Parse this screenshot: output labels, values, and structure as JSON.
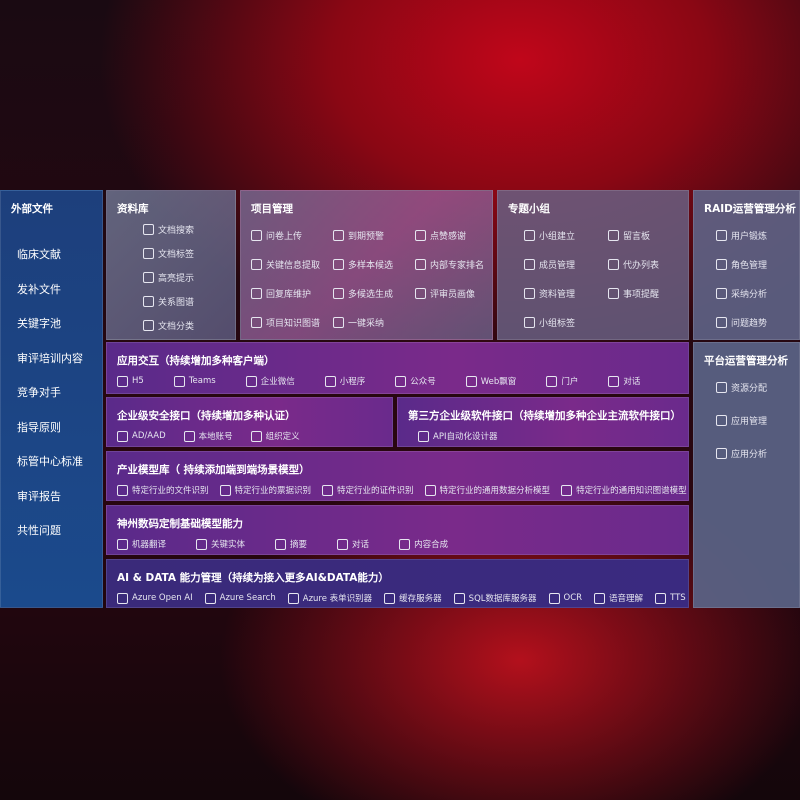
{
  "left": {
    "title": "外部文件",
    "items": [
      "临床文献",
      "发补文件",
      "关键字池",
      "审评培训内容",
      "竞争对手",
      "指导原则",
      "标管中心标准",
      "审评报告",
      "共性问题"
    ]
  },
  "library": {
    "title": "资料库",
    "items": [
      {
        "label": "文档搜索",
        "icon": "doc-search-icon"
      },
      {
        "label": "文档标签",
        "icon": "tag-icon"
      },
      {
        "label": "高亮提示",
        "icon": "pen-icon"
      },
      {
        "label": "关系图谱",
        "icon": "graph-icon"
      },
      {
        "label": "文档分类",
        "icon": "doc-copy-icon"
      }
    ]
  },
  "project": {
    "title": "项目管理",
    "items": [
      {
        "label": "问卷上传",
        "icon": "cloud-upload-icon"
      },
      {
        "label": "到期预警",
        "icon": "alarm-icon"
      },
      {
        "label": "点赞感谢",
        "icon": "thumbs-up-icon"
      },
      {
        "label": "关键信息提取",
        "icon": "window-icon"
      },
      {
        "label": "多样本候选",
        "icon": "reply-icon"
      },
      {
        "label": "内部专家排名",
        "icon": "ranking-icon"
      },
      {
        "label": "回复库维护",
        "icon": "edit-icon"
      },
      {
        "label": "多候选生成",
        "icon": "puzzle-icon"
      },
      {
        "label": "评审员画像",
        "icon": "user-icon"
      },
      {
        "label": "项目知识图谱",
        "icon": "graph-icon"
      },
      {
        "label": "一键采纳",
        "icon": "reply-icon"
      }
    ]
  },
  "group": {
    "title": "专题小组",
    "items": [
      {
        "label": "小组建立",
        "icon": "users-icon"
      },
      {
        "label": "留言板",
        "icon": "bbs-icon"
      },
      {
        "label": "成员管理",
        "icon": "user-add-icon"
      },
      {
        "label": "代办列表",
        "icon": "clipboard-icon"
      },
      {
        "label": "资料管理",
        "icon": "folder-icon"
      },
      {
        "label": "事项提醒",
        "icon": "bell-icon"
      },
      {
        "label": "小组标签",
        "icon": "tag-icon"
      }
    ]
  },
  "raid": {
    "title": "RAID运营管理分析",
    "items": [
      {
        "label": "用户锻炼",
        "icon": "id-card-icon"
      },
      {
        "label": "角色管理",
        "icon": "users-icon"
      },
      {
        "label": "采纳分析",
        "icon": "qa-icon"
      },
      {
        "label": "问题趋势",
        "icon": "trend-icon"
      }
    ]
  },
  "platform": {
    "title": "平台运营管理分析",
    "items": [
      {
        "label": "资源分配",
        "icon": "checklist-icon"
      },
      {
        "label": "应用管理",
        "icon": "apps-icon"
      },
      {
        "label": "应用分析",
        "icon": "analysis-icon"
      }
    ]
  },
  "app": {
    "title": "应用交互（持续增加多种客户端）",
    "items": [
      {
        "label": "H5",
        "icon": "html5-icon"
      },
      {
        "label": "Teams",
        "icon": "teams-icon"
      },
      {
        "label": "企业微信",
        "icon": "wecom-icon"
      },
      {
        "label": "小程序",
        "icon": "miniprogram-icon"
      },
      {
        "label": "公众号",
        "icon": "users-icon"
      },
      {
        "label": "Web飘窗",
        "icon": "window-icon"
      },
      {
        "label": "门户",
        "icon": "portal-icon"
      },
      {
        "label": "对话",
        "icon": "chat-users-icon"
      }
    ]
  },
  "security": {
    "title": "企业级安全接口（持续增加多种认证）",
    "items": [
      {
        "label": "AD/AAD",
        "icon": "ad-icon"
      },
      {
        "label": "本地账号",
        "icon": "user-icon"
      },
      {
        "label": "组织定义",
        "icon": "org-icon"
      }
    ]
  },
  "third": {
    "title": "第三方企业级软件接口（持续增加多种企业主流软件接口）",
    "items": [
      {
        "label": "API自动化设计器",
        "icon": "gear-icon"
      }
    ]
  },
  "industry": {
    "title": "产业模型库（ 持续添加端到端场景模型）",
    "items": [
      {
        "label": "特定行业的文件识别",
        "icon": "file-icon"
      },
      {
        "label": "特定行业的票据识别",
        "icon": "receipt-icon"
      },
      {
        "label": "特定行业的证件识别",
        "icon": "id-card-icon"
      },
      {
        "label": "特定行业的通用数据分析模型",
        "icon": "chart-icon"
      },
      {
        "label": "特定行业的通用知识图谱模型",
        "icon": "graph-icon"
      }
    ]
  },
  "base": {
    "title": "神州数码定制基础模型能力",
    "items": [
      {
        "label": "机器翻译",
        "icon": "translate-icon"
      },
      {
        "label": "关键实体",
        "icon": "entity-icon"
      },
      {
        "label": "摘要",
        "icon": "doc-icon"
      },
      {
        "label": "对话",
        "icon": "chat-icon"
      },
      {
        "label": "内容合成",
        "icon": "puzzle-icon"
      }
    ]
  },
  "ai": {
    "title": "AI & DATA 能力管理（持续为接入更多AI&DATA能力）",
    "items": [
      {
        "label": "Azure Open AI",
        "icon": "openai-icon"
      },
      {
        "label": "Azure Search",
        "icon": "search-doc-icon"
      },
      {
        "label": "Azure 表单识别器",
        "icon": "form-icon"
      },
      {
        "label": "缓存服务器",
        "icon": "cache-icon"
      },
      {
        "label": "SQL数据库服务器",
        "icon": "database-icon"
      },
      {
        "label": "OCR",
        "icon": "ocr-icon"
      },
      {
        "label": "语音理解",
        "icon": "speech-icon"
      },
      {
        "label": "TTS",
        "icon": "tts-icon"
      }
    ]
  }
}
